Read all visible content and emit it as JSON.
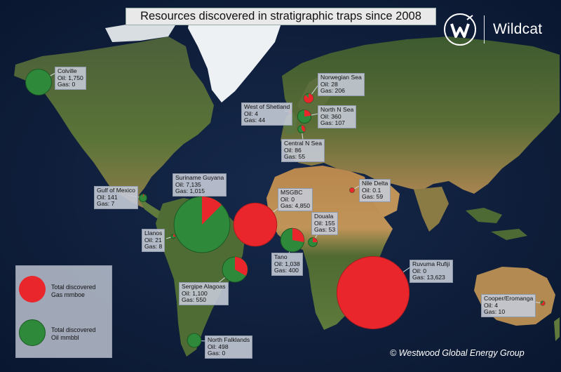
{
  "title": "Resources discovered in stratigraphic traps since 2008",
  "brand": {
    "name": "Wildcat",
    "logo_icon": "wildcat-w-logo-icon"
  },
  "copyright": "© Westwood Global Energy Group",
  "colors": {
    "gas": "#e8262b",
    "oil": "#2e8a3a",
    "ocean": "#11213f",
    "land": "#4f6a36",
    "desert": "#b3874f",
    "ice": "#eef1f4"
  },
  "legend": {
    "gas_label": [
      "Total discovered",
      "Gas mmboe"
    ],
    "oil_label": [
      "Total discovered",
      "Oil mmbbl"
    ]
  },
  "discoveries": [
    {
      "id": "colville",
      "name": "Colville",
      "oil_text": "Oil: 1,750",
      "gas_text": "Gas: 0",
      "oil": 1750,
      "gas": 0
    },
    {
      "id": "norwegian-sea",
      "name": "Norwegian Sea",
      "oil_text": "Oil: 28",
      "gas_text": "Gas: 206",
      "oil": 28,
      "gas": 206
    },
    {
      "id": "west-of-shetland",
      "name": "West of Shetland",
      "oil_text": "Oil: 4",
      "gas_text": "Gas: 44",
      "oil": 4,
      "gas": 44
    },
    {
      "id": "north-n-sea",
      "name": "North N Sea",
      "oil_text": "Oil: 360",
      "gas_text": "Gas: 107",
      "oil": 360,
      "gas": 107
    },
    {
      "id": "central-n-sea",
      "name": "Central N Sea",
      "oil_text": "Oil: 86",
      "gas_text": "Gas: 55",
      "oil": 86,
      "gas": 55
    },
    {
      "id": "suriname-guyana",
      "name": "Suriname Guyana",
      "oil_text": "Oil: 7,135",
      "gas_text": "Gas: 1,015",
      "oil": 7135,
      "gas": 1015
    },
    {
      "id": "gulf-of-mexico",
      "name": "Gulf of Mexico",
      "oil_text": "Oil: 141",
      "gas_text": "Gas: 7",
      "oil": 141,
      "gas": 7
    },
    {
      "id": "msgbc",
      "name": "MSGBC",
      "oil_text": "Oil: 0",
      "gas_text": "Gas: 4,850",
      "oil": 0,
      "gas": 4850
    },
    {
      "id": "nile-delta",
      "name": "Nile Delta",
      "oil_text": "Oil: 0.1",
      "gas_text": "Gas: 59",
      "oil": 0.1,
      "gas": 59
    },
    {
      "id": "douala",
      "name": "Douala",
      "oil_text": "Oil: 155",
      "gas_text": "Gas: 53",
      "oil": 155,
      "gas": 53
    },
    {
      "id": "llanos",
      "name": "Llanos",
      "oil_text": "Oil: 21",
      "gas_text": "Gas: 8",
      "oil": 21,
      "gas": 8
    },
    {
      "id": "tano",
      "name": "Tano",
      "oil_text": "Oil: 1,038",
      "gas_text": "Gas: 400",
      "oil": 1038,
      "gas": 400
    },
    {
      "id": "sergipe-alagoas",
      "name": "Sergipe Alagoas",
      "oil_text": "Oil: 1,100",
      "gas_text": "Gas: 550",
      "oil": 1100,
      "gas": 550
    },
    {
      "id": "ruvuma-rufiji",
      "name": "Ruvuma Rufiji",
      "oil_text": "Oil: 0",
      "gas_text": "Gas: 13,623",
      "oil": 0,
      "gas": 13623
    },
    {
      "id": "cooper-eromanga",
      "name": "Cooper/Eromanga",
      "oil_text": "Oil: 4",
      "gas_text": "Gas: 10",
      "oil": 4,
      "gas": 10
    },
    {
      "id": "north-falklands",
      "name": "North Falklands",
      "oil_text": "Oil: 498",
      "gas_text": "Gas: 0",
      "oil": 498,
      "gas": 0
    }
  ]
}
